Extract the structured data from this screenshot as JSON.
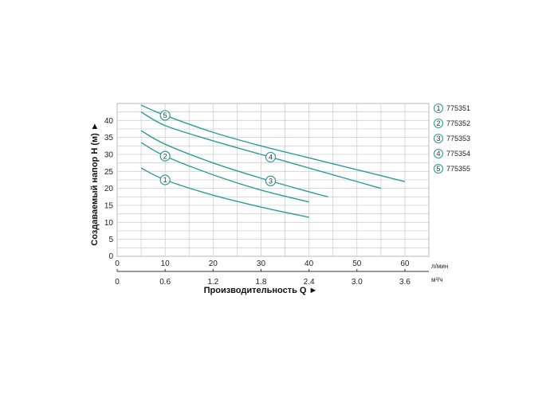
{
  "chart_data": {
    "type": "line",
    "ylabel": "Создаваемый напор Н (м) ►",
    "xlabel": "Производительность Q ►",
    "x_unit_primary": "л/мин",
    "x_unit_secondary": "м³/ч",
    "xlim": [
      0,
      65
    ],
    "ylim": [
      0,
      45
    ],
    "x_ticks": [
      0,
      10,
      20,
      30,
      40,
      50,
      60
    ],
    "x_tick_labels": [
      "0",
      "10",
      "20",
      "30",
      "40",
      "50",
      "60"
    ],
    "x2_tick_labels": [
      "0",
      "0.6",
      "1.2",
      "1.8",
      "2.4",
      "3.0",
      "3.6"
    ],
    "y_ticks": [
      0,
      5,
      10,
      15,
      20,
      25,
      30,
      35,
      40
    ],
    "y_tick_labels": [
      "0",
      "5",
      "10",
      "15",
      "20",
      "25",
      "30",
      "35",
      "40"
    ],
    "grid": true,
    "legend_position": "right",
    "line_color": "#2a9d99",
    "series": [
      {
        "name": "775351",
        "label": "1",
        "marker_x": 10,
        "x": [
          5,
          10,
          20,
          30,
          40
        ],
        "y": [
          26,
          22.5,
          18,
          14.5,
          11.5
        ]
      },
      {
        "name": "775352",
        "label": "2",
        "marker_x": 10,
        "x": [
          5,
          10,
          20,
          30,
          40
        ],
        "y": [
          33.5,
          29.5,
          24,
          19.5,
          16
        ]
      },
      {
        "name": "775353",
        "label": "3",
        "marker_x": 32,
        "x": [
          5,
          10,
          20,
          30,
          40,
          44
        ],
        "y": [
          37,
          33,
          27.5,
          23,
          19,
          17.5
        ]
      },
      {
        "name": "775354",
        "label": "4",
        "marker_x": 32,
        "x": [
          5,
          10,
          20,
          30,
          40,
          50,
          55
        ],
        "y": [
          42.5,
          38.5,
          34,
          30,
          26,
          22,
          20
        ]
      },
      {
        "name": "775355",
        "label": "5",
        "marker_x": 10,
        "x": [
          5,
          10,
          20,
          30,
          40,
          50,
          60
        ],
        "y": [
          44.5,
          41.5,
          36.5,
          32.5,
          29,
          25.5,
          22
        ]
      }
    ]
  }
}
